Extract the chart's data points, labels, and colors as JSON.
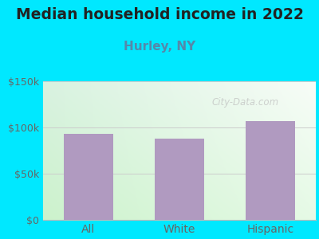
{
  "title": "Median household income in 2022",
  "subtitle": "Hurley, NY",
  "categories": [
    "All",
    "White",
    "Hispanic"
  ],
  "values": [
    93000,
    88000,
    107000
  ],
  "bar_color": "#b09ac0",
  "ylim": [
    0,
    150000
  ],
  "yticks": [
    0,
    50000,
    100000,
    150000
  ],
  "ytick_labels": [
    "$0",
    "$50k",
    "$100k",
    "$150k"
  ],
  "background_outer": "#00e8ff",
  "bg_grad_topleft": "#d8efe0",
  "bg_grad_topright": "#eef5f0",
  "bg_grad_bottomleft": "#c8f0c8",
  "bg_grad_bottomright": "#e8f8e8",
  "title_fontsize": 13.5,
  "title_color": "#222222",
  "subtitle_fontsize": 11,
  "subtitle_color": "#5588aa",
  "tick_color": "#666666",
  "tick_fontsize": 9,
  "xtick_fontsize": 10,
  "watermark": "City-Data.com",
  "watermark_color": "#bbbbbb",
  "watermark_alpha": 0.65,
  "grid_color": "#cccccc",
  "bottom_spine_color": "#bbbbbb"
}
